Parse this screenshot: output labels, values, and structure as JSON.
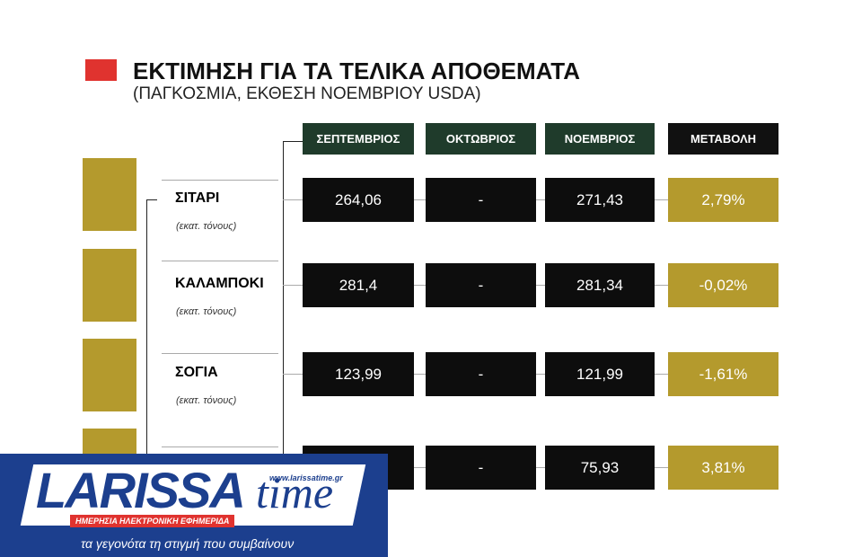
{
  "header": {
    "title": "ΕΚΤΙΜΗΣΗ ΓΙΑ ΤΑ ΤΕΛΙΚΑ ΑΠΟΘΕΜΑΤΑ",
    "subtitle": "(ΠΑΓΚΟΣΜΙΑ, ΕΚΘΕΣΗ ΝΟΕΜΒΡΙΟΥ USDA)"
  },
  "table": {
    "columns": [
      "ΣΕΠΤΕΜΒΡΙΟΣ",
      "ΟΚΤΩΒΡΙΟΣ",
      "ΝΟΕΜΒΡΙΟΣ",
      "ΜΕΤΑΒΟΛΗ"
    ],
    "rows": [
      {
        "name": "ΣΙΤΑΡΙ",
        "unit": "(εκατ. τόνους)",
        "values": [
          "264,06",
          "-",
          "271,43",
          "2,79%"
        ]
      },
      {
        "name": "ΚΑΛΑΜΠΟΚΙ",
        "unit": "(εκατ. τόνους)",
        "values": [
          "281,4",
          "-",
          "281,34",
          "-0,02%"
        ]
      },
      {
        "name": "ΣΟΓΙΑ",
        "unit": "(εκατ. τόνους)",
        "values": [
          "123,99",
          "-",
          "121,99",
          "-1,61%"
        ]
      },
      {
        "values": [
          null,
          "-",
          "75,93",
          "3,81%"
        ]
      }
    ]
  },
  "logo": {
    "name": "LARISSA",
    "name2": "time",
    "url": "www.larissatime.gr",
    "strap": "ΗΜΕΡΗΣΙΑ ΗΛΕΚΤΡΟΝΙΚΗ ΕΦΗΜΕΡΙΔΑ",
    "tagline": "τα γεγονότα τη στιγμή που συμβαίνουν"
  }
}
